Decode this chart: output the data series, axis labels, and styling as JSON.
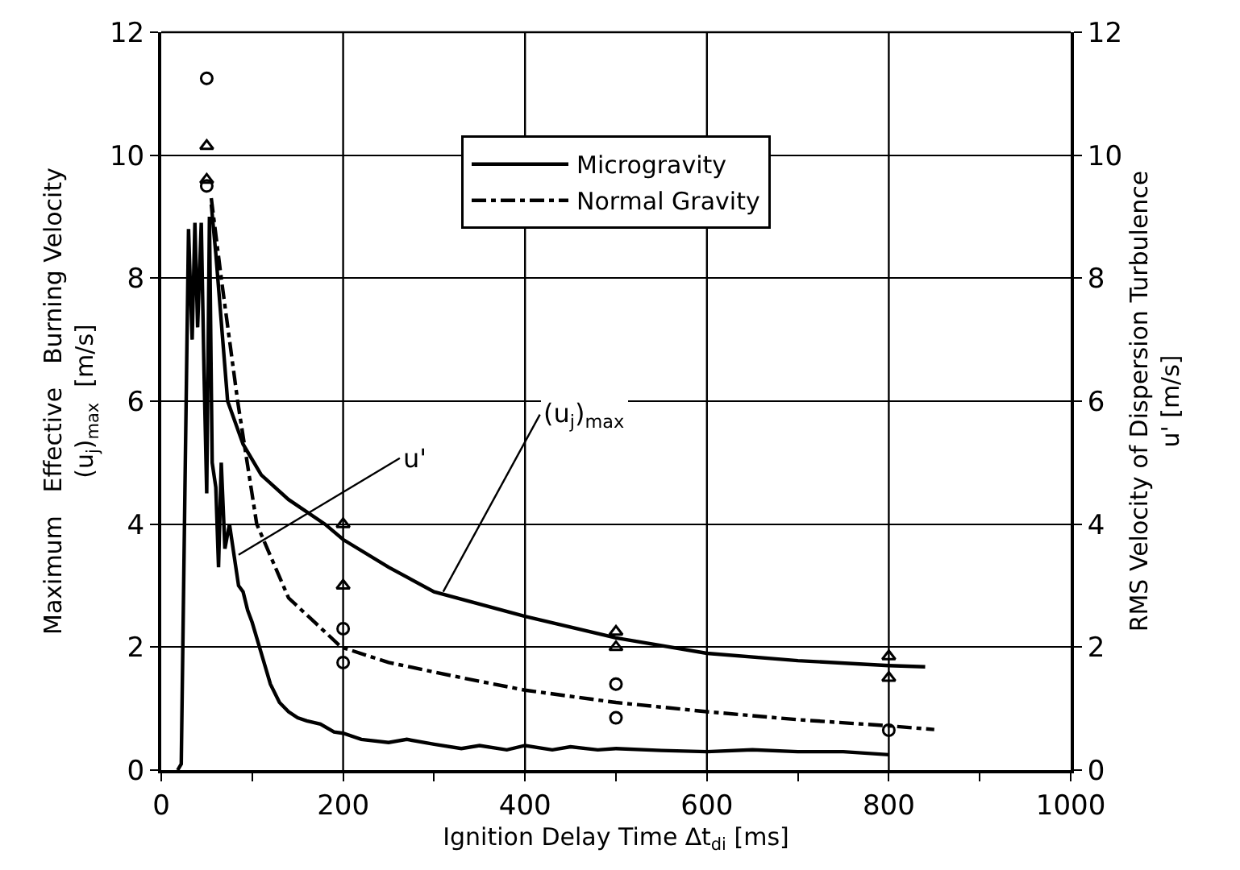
{
  "chart_data": {
    "type": "line",
    "xlabel": "Ignition Delay Time ∆t$_{di}$ [ms]",
    "ylabel": "Maximum   Effective   Burning Velocity\n(u$_{j}$)$_{max}$  [m/s]",
    "y2label": "RMS Velocity of Dispersion Turbulence\nu' [m/s]",
    "xlim": [
      0,
      1000
    ],
    "xticks": [
      0,
      {
        "value": 100,
        "label": null
      },
      200,
      {
        "value": 300,
        "label": null
      },
      400,
      {
        "value": 500,
        "label": null
      },
      600,
      {
        "value": 700,
        "label": null
      },
      800,
      {
        "value": 900,
        "label": null
      },
      1000
    ],
    "ylim": [
      0,
      12
    ],
    "yticks": [
      0,
      2,
      4,
      6,
      8,
      10,
      12
    ],
    "y2lim": [
      0,
      12
    ],
    "y2ticks": [
      0,
      2,
      4,
      6,
      8,
      10,
      12
    ],
    "grid": true,
    "legend": "top",
    "line_style": "solid",
    "series": [
      {
        "name": "Microgravity",
        "color": "#000000",
        "line_style": "solid",
        "x": [
          55,
          60,
          73,
          90,
          110,
          140,
          180,
          200,
          250,
          300,
          400,
          500,
          600,
          700,
          800,
          840
        ],
        "values": [
          9.2,
          8.4,
          6.0,
          5.3,
          4.8,
          4.4,
          4.0,
          3.75,
          3.3,
          2.9,
          2.5,
          2.15,
          1.9,
          1.78,
          1.7,
          1.68
        ]
      },
      {
        "name": "Normal Gravity",
        "color": "#000000",
        "line_style": "dashdot",
        "x": [
          55,
          66,
          84,
          105,
          140,
          198,
          250,
          331,
          400,
          500,
          600,
          700,
          800,
          850
        ],
        "values": [
          9.3,
          8.0,
          6.0,
          4.0,
          2.8,
          2.0,
          1.75,
          1.5,
          1.3,
          1.1,
          0.95,
          0.82,
          0.72,
          0.66
        ]
      },
      {
        "axis": "y2",
        "color": "#000000",
        "x": [
          18,
          22,
          26,
          30,
          34,
          37,
          40,
          44,
          47,
          50,
          53,
          56,
          60,
          63,
          66,
          70,
          75,
          80,
          85,
          90,
          95,
          100,
          110,
          120,
          130,
          140,
          150,
          160,
          175,
          190,
          200,
          220,
          250,
          270,
          300,
          330,
          350,
          380,
          400,
          430,
          450,
          480,
          500,
          550,
          600,
          650,
          700,
          750,
          800
        ],
        "values": [
          0,
          0.1,
          4.5,
          8.8,
          7.0,
          8.9,
          7.2,
          8.9,
          6.5,
          4.5,
          9.0,
          5.0,
          4.6,
          3.3,
          5.0,
          3.6,
          4.0,
          3.5,
          3.0,
          2.9,
          2.6,
          2.4,
          1.9,
          1.4,
          1.1,
          0.95,
          0.85,
          0.8,
          0.75,
          0.62,
          0.6,
          0.5,
          0.45,
          0.5,
          0.42,
          0.35,
          0.4,
          0.33,
          0.4,
          0.33,
          0.38,
          0.33,
          0.35,
          0.32,
          0.3,
          0.33,
          0.3,
          0.3,
          0.25
        ]
      },
      {
        "type": "scatter",
        "color": "#000000",
        "marker": "triangle",
        "x": [
          50,
          50,
          200,
          200,
          500,
          500,
          800,
          800
        ],
        "values": [
          10.15,
          9.6,
          4.0,
          3.0,
          2.25,
          2.0,
          1.85,
          1.5
        ]
      },
      {
        "type": "scatter",
        "color": "#000000",
        "marker": "circle",
        "x": [
          50,
          50,
          200,
          200,
          500,
          500,
          800
        ],
        "values": [
          11.25,
          9.5,
          2.3,
          1.75,
          1.4,
          0.85,
          0.65
        ]
      }
    ],
    "annotations": [
      {
        "text": "u'",
        "x": 85,
        "y": 3.5
      },
      {
        "text": "(u$_{j}$)$_{max}$",
        "x": 310,
        "y": 2.9
      }
    ]
  }
}
